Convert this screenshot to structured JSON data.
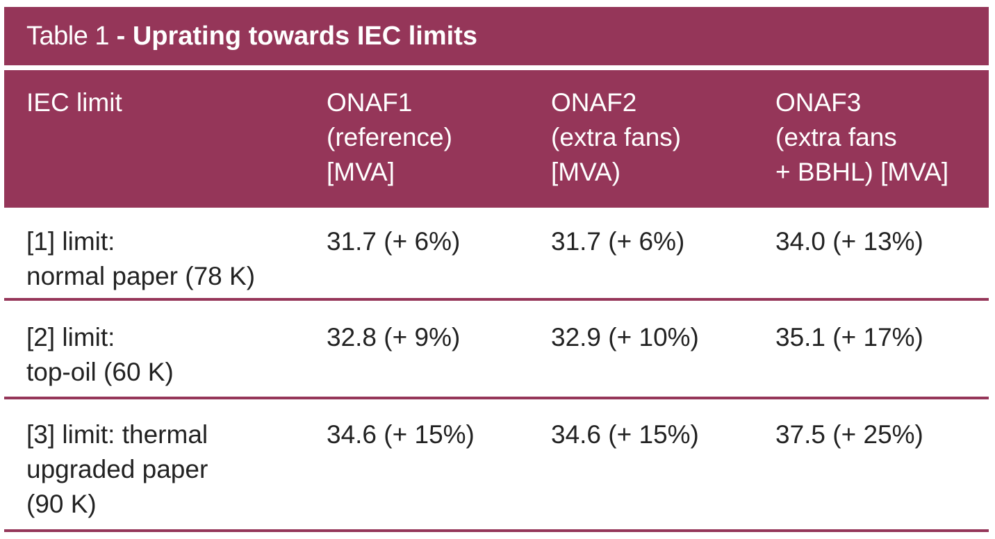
{
  "table": {
    "title_prefix": "Table 1",
    "title_main": "- Uprating towards IEC limits",
    "headers": [
      [
        "IEC limit"
      ],
      [
        "ONAF1",
        "(reference)",
        "[MVA]"
      ],
      [
        "ONAF2",
        "(extra fans)",
        "[MVA)"
      ],
      [
        "ONAF3",
        "(extra fans",
        "+ BBHL) [MVA]"
      ]
    ],
    "rows": [
      {
        "limit": [
          "[1] limit:",
          "normal paper (78 K)"
        ],
        "onaf1": "31.7 (+ 6%)",
        "onaf2": "31.7 (+ 6%)",
        "onaf3": "34.0 (+ 13%)"
      },
      {
        "limit": [
          "[2] limit:",
          "top-oil (60 K)"
        ],
        "onaf1": "32.8 (+ 9%)",
        "onaf2": "32.9 (+ 10%)",
        "onaf3": "35.1 (+ 17%)"
      },
      {
        "limit": [
          "[3] limit: thermal",
          "upgraded paper",
          "(90 K)"
        ],
        "onaf1": "34.6 (+ 15%)",
        "onaf2": "34.6 (+ 15%)",
        "onaf3": "37.5 (+ 25%)"
      }
    ]
  },
  "colors": {
    "accent": "#953659",
    "text_dark": "#222222",
    "text_light": "#ffffff"
  }
}
